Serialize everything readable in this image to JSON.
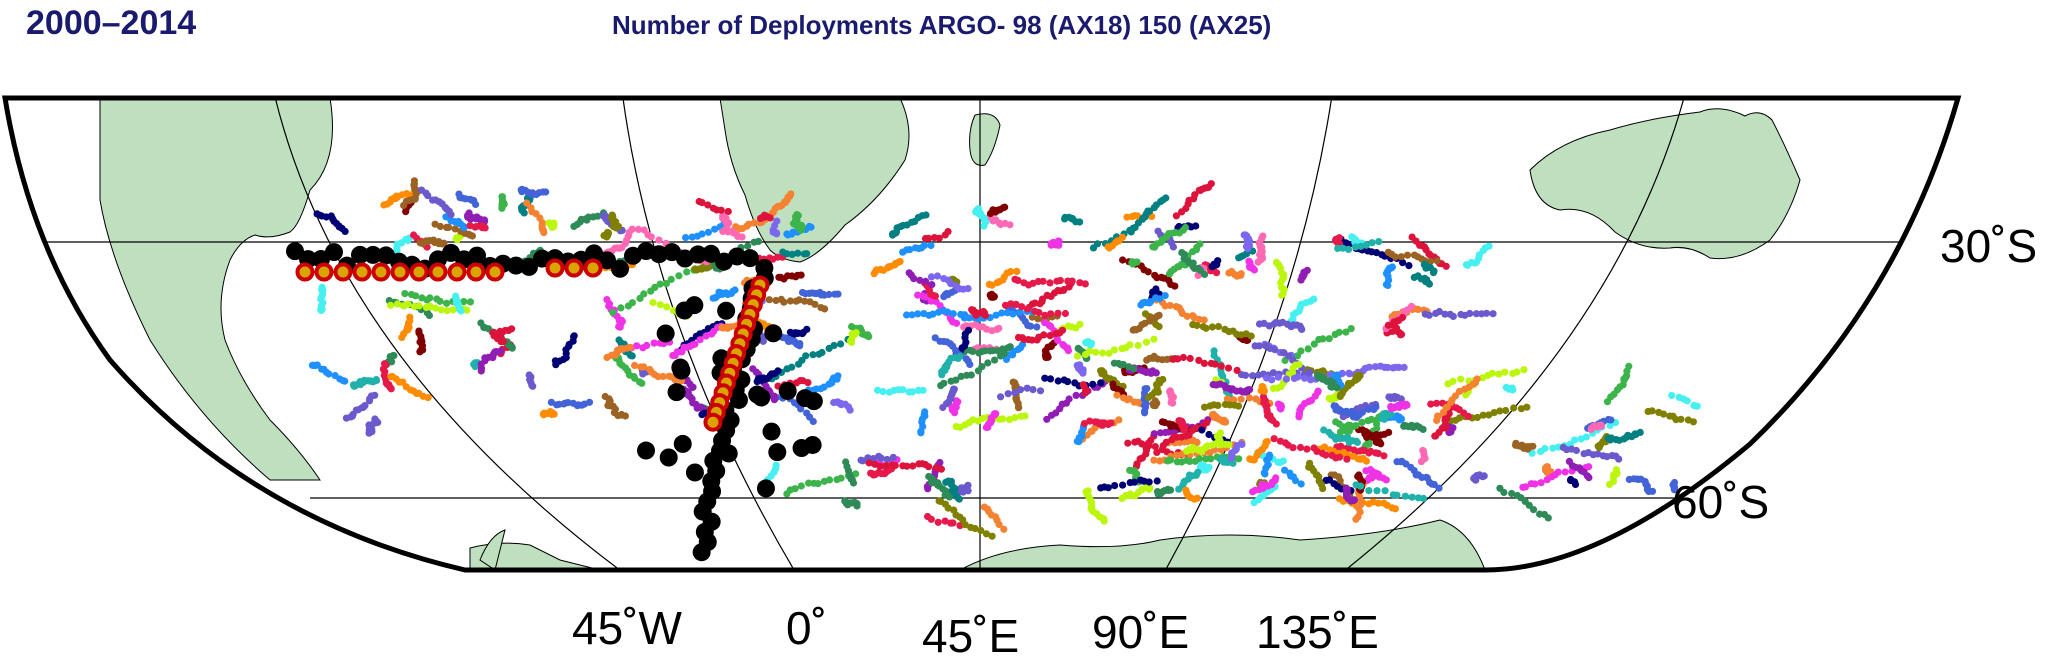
{
  "header": {
    "period": "2000–2014",
    "title": "Number of Deployments ARGO- 98 (AX18) 150 (AX25)"
  },
  "map": {
    "projection": "world projection centred on 0° showing South Atlantic, Indian Ocean and Southern Ocean",
    "latitude_labels": [
      "30˚S",
      "60˚S"
    ],
    "longitude_labels": [
      "45˚W",
      "0˚",
      "45˚E",
      "90˚E",
      "135˚E"
    ],
    "colors": {
      "land": "#bfe0bf",
      "ocean": "#ffffff",
      "deployment_marker_fill": "#d9a400",
      "deployment_marker_ring": "#cc0000",
      "xbt_marker": "#000000"
    },
    "legend_meaning": {
      "ax18_count": "98",
      "ax25_count": "150"
    }
  }
}
